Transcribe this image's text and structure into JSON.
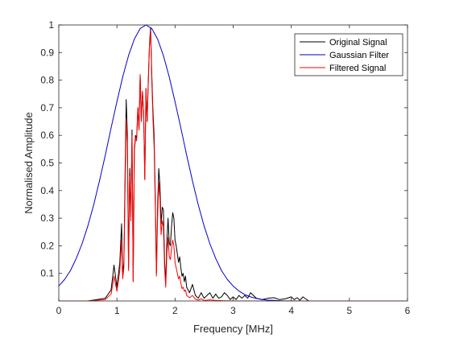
{
  "chart_data": {
    "type": "line",
    "title": "",
    "xlabel": "Frequency [MHz]",
    "ylabel": "Normalised Amplitude",
    "xlim": [
      0,
      6
    ],
    "ylim": [
      0,
      1
    ],
    "x_ticks": [
      0,
      1,
      2,
      3,
      4,
      5,
      6
    ],
    "y_ticks": [
      0.1,
      0.2,
      0.3,
      0.4,
      0.5,
      0.6,
      0.7,
      0.8,
      0.9,
      1
    ],
    "grid": false,
    "legend_position": "top-right",
    "series": [
      {
        "name": "Original Signal",
        "color": "#000000",
        "x": [
          0,
          0.5,
          0.8,
          0.9,
          0.95,
          1.0,
          1.05,
          1.08,
          1.1,
          1.12,
          1.14,
          1.16,
          1.18,
          1.2,
          1.22,
          1.24,
          1.26,
          1.28,
          1.3,
          1.32,
          1.34,
          1.36,
          1.38,
          1.4,
          1.42,
          1.44,
          1.46,
          1.48,
          1.5,
          1.52,
          1.54,
          1.56,
          1.58,
          1.6,
          1.62,
          1.64,
          1.66,
          1.68,
          1.7,
          1.72,
          1.74,
          1.76,
          1.78,
          1.8,
          1.82,
          1.84,
          1.86,
          1.88,
          1.9,
          1.92,
          1.94,
          1.96,
          1.98,
          2.0,
          2.02,
          2.04,
          2.06,
          2.08,
          2.1,
          2.12,
          2.14,
          2.16,
          2.18,
          2.2,
          2.25,
          2.3,
          2.35,
          2.4,
          2.45,
          2.5,
          2.55,
          2.6,
          2.65,
          2.7,
          2.75,
          2.8,
          2.85,
          2.9,
          2.95,
          3.0,
          3.05,
          3.1,
          3.15,
          3.2,
          3.25,
          3.3,
          3.35,
          3.4,
          3.5,
          3.6,
          3.7,
          3.8,
          3.9,
          4.0,
          4.05,
          4.1,
          4.15,
          4.2,
          4.3,
          4.5,
          5.0,
          6.0
        ],
        "values": [
          0,
          0,
          0.01,
          0.04,
          0.13,
          0.05,
          0.14,
          0.28,
          0.1,
          0.14,
          0.45,
          0.73,
          0.6,
          0.12,
          0.48,
          0.3,
          0.62,
          0.07,
          0.55,
          0.6,
          0.59,
          0.7,
          0.62,
          0.82,
          0.65,
          0.76,
          0.68,
          0.44,
          0.77,
          0.65,
          0.8,
          0.93,
          0.99,
          0.82,
          0.69,
          0.6,
          0.38,
          0.1,
          0.34,
          0.48,
          0.42,
          0.28,
          0.34,
          0.33,
          0.15,
          0.06,
          0.22,
          0.3,
          0.21,
          0.2,
          0.27,
          0.32,
          0.3,
          0.22,
          0.2,
          0.17,
          0.14,
          0.16,
          0.12,
          0.09,
          0.1,
          0.07,
          0.09,
          0.05,
          0.03,
          0.06,
          0.02,
          0.01,
          0.03,
          0.01,
          0.02,
          0.03,
          0.01,
          0.025,
          0.01,
          0.015,
          0.03,
          0.02,
          0.005,
          0.015,
          0.005,
          0.02,
          0.01,
          0.02,
          0.01,
          0.03,
          0.02,
          0.01,
          0.005,
          0.01,
          0.012,
          0.005,
          0.008,
          0.015,
          0.005,
          0.012,
          0.003,
          0.015,
          0,
          0,
          0,
          0
        ]
      },
      {
        "name": "Gaussian Filter",
        "color": "#0000cc",
        "gaussian": {
          "center": 1.5,
          "sigma": 0.62
        },
        "x": [
          0,
          0.1,
          0.2,
          0.3,
          0.4,
          0.5,
          0.6,
          0.7,
          0.8,
          0.9,
          1.0,
          1.1,
          1.2,
          1.3,
          1.4,
          1.5,
          1.6,
          1.7,
          1.8,
          1.9,
          2.0,
          2.1,
          2.2,
          2.3,
          2.4,
          2.5,
          2.6,
          2.7,
          2.8,
          2.9,
          3.0,
          3.1,
          3.2,
          3.3,
          3.4,
          3.5,
          3.6,
          3.7,
          3.8,
          3.9,
          4.0,
          4.2,
          4.4,
          4.6,
          4.8,
          5.0,
          5.5,
          6.0
        ],
        "values": [
          0.054,
          0.078,
          0.11,
          0.154,
          0.207,
          0.272,
          0.348,
          0.435,
          0.528,
          0.627,
          0.722,
          0.812,
          0.889,
          0.949,
          0.987,
          1.0,
          0.987,
          0.949,
          0.889,
          0.812,
          0.722,
          0.627,
          0.528,
          0.435,
          0.348,
          0.272,
          0.207,
          0.154,
          0.11,
          0.078,
          0.054,
          0.036,
          0.023,
          0.015,
          0.009,
          0.005,
          0.003,
          0.002,
          0.001,
          0.0005,
          0.0003,
          0,
          0,
          0,
          0,
          0,
          0,
          0
        ]
      },
      {
        "name": "Filtered Signal",
        "color": "#ff0000",
        "x": [
          0,
          0.5,
          0.8,
          0.9,
          0.95,
          1.0,
          1.05,
          1.08,
          1.1,
          1.12,
          1.14,
          1.16,
          1.18,
          1.2,
          1.22,
          1.24,
          1.26,
          1.28,
          1.3,
          1.32,
          1.34,
          1.36,
          1.38,
          1.4,
          1.42,
          1.44,
          1.46,
          1.48,
          1.5,
          1.52,
          1.54,
          1.56,
          1.58,
          1.6,
          1.62,
          1.64,
          1.66,
          1.68,
          1.7,
          1.72,
          1.74,
          1.76,
          1.78,
          1.8,
          1.82,
          1.84,
          1.86,
          1.88,
          1.9,
          1.92,
          1.94,
          1.96,
          1.98,
          2.0,
          2.02,
          2.04,
          2.06,
          2.08,
          2.1,
          2.12,
          2.14,
          2.16,
          2.18,
          2.2,
          2.25,
          2.3,
          2.35,
          2.4,
          2.45,
          2.5,
          2.6,
          2.7,
          2.8,
          3.0,
          3.5,
          4.0,
          5.0,
          6.0
        ],
        "values": [
          0,
          0,
          0.005,
          0.025,
          0.09,
          0.035,
          0.11,
          0.22,
          0.08,
          0.12,
          0.4,
          0.66,
          0.56,
          0.11,
          0.45,
          0.29,
          0.6,
          0.07,
          0.54,
          0.59,
          0.58,
          0.7,
          0.62,
          0.82,
          0.65,
          0.76,
          0.68,
          0.44,
          0.77,
          0.65,
          0.79,
          0.92,
          0.98,
          0.8,
          0.66,
          0.56,
          0.35,
          0.09,
          0.3,
          0.43,
          0.37,
          0.24,
          0.29,
          0.27,
          0.12,
          0.05,
          0.17,
          0.23,
          0.16,
          0.15,
          0.19,
          0.22,
          0.2,
          0.14,
          0.12,
          0.1,
          0.08,
          0.09,
          0.065,
          0.045,
          0.05,
          0.035,
          0.04,
          0.02,
          0.012,
          0.02,
          0.007,
          0.003,
          0.008,
          0.002,
          0.004,
          0.002,
          0.001,
          0,
          0,
          0,
          0,
          0
        ]
      }
    ]
  }
}
